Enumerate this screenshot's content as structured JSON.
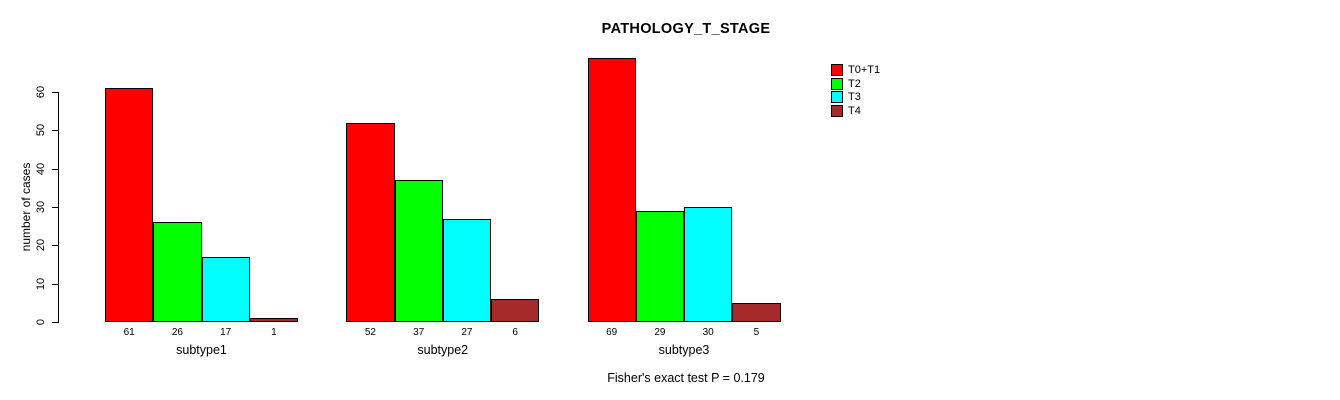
{
  "chart_data": {
    "type": "bar",
    "title": "PATHOLOGY_T_STAGE",
    "ylabel": "number of cases",
    "xlabel": "",
    "categories": [
      "subtype1",
      "subtype2",
      "subtype3"
    ],
    "series": [
      {
        "name": "T0+T1",
        "color": "#ff0000",
        "values": [
          61,
          52,
          69
        ]
      },
      {
        "name": "T2",
        "color": "#00ff00",
        "values": [
          26,
          37,
          29
        ]
      },
      {
        "name": "T3",
        "color": "#00ffff",
        "values": [
          17,
          27,
          30
        ]
      },
      {
        "name": "T4",
        "color": "#a52a2a",
        "values": [
          1,
          6,
          5
        ]
      }
    ],
    "ylim": [
      0,
      60
    ],
    "yticks": [
      0,
      10,
      20,
      30,
      40,
      50,
      60
    ],
    "bar_value_labels": true,
    "grid": false,
    "legend_position": "top-right"
  },
  "annotations": {
    "stats_note": "Fisher's exact test P = 0.179"
  },
  "colors": {
    "background": "#ffffff",
    "axis": "#000000",
    "text": "#000000"
  }
}
